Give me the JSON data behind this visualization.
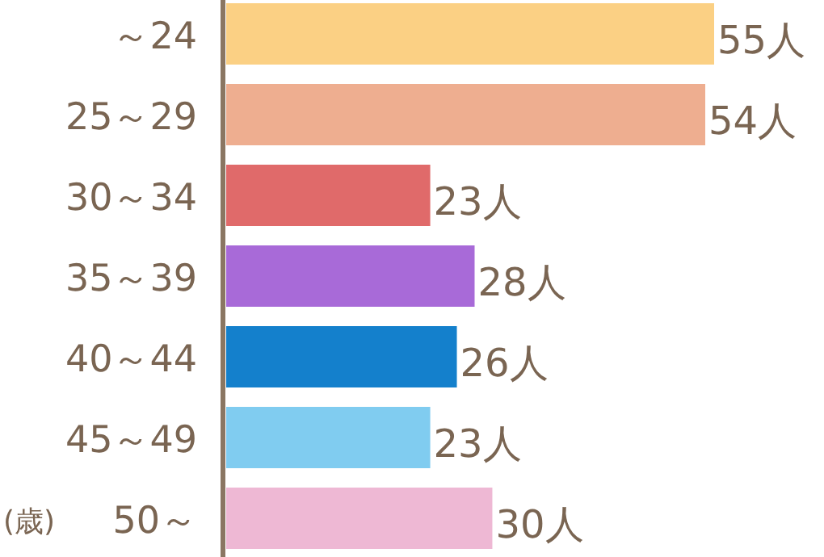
{
  "chart_data": {
    "type": "bar",
    "orientation": "horizontal",
    "ylabel": "(歳)",
    "categories": [
      "～24",
      "25～29",
      "30～34",
      "35～39",
      "40～44",
      "45～49",
      "50～"
    ],
    "values": [
      55,
      54,
      23,
      28,
      26,
      23,
      30
    ],
    "colors": [
      "#fbd084",
      "#eeae90",
      "#e06a6a",
      "#a86ad8",
      "#1480cc",
      "#80ccf0",
      "#eeb8d4"
    ],
    "value_labels": [
      "55人",
      "54人",
      "23人",
      "28人",
      "26人",
      "23人",
      "30人"
    ]
  }
}
